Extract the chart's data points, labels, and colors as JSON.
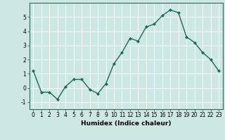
{
  "x": [
    0,
    1,
    2,
    3,
    4,
    5,
    6,
    7,
    8,
    9,
    10,
    11,
    12,
    13,
    14,
    15,
    16,
    17,
    18,
    19,
    20,
    21,
    22,
    23
  ],
  "y": [
    1.2,
    -0.3,
    -0.3,
    -0.8,
    0.1,
    0.6,
    0.6,
    -0.1,
    -0.4,
    0.3,
    1.7,
    2.5,
    3.5,
    3.3,
    4.3,
    4.5,
    5.1,
    5.5,
    5.3,
    3.6,
    3.2,
    2.5,
    2.0,
    1.2
  ],
  "line_color": "#1a6b5a",
  "marker": "D",
  "markersize": 2.0,
  "linewidth": 1.0,
  "bg_color": "#cde8e4",
  "grid_color": "#ffffff",
  "xlabel": "Humidex (Indice chaleur)",
  "ylim": [
    -1.5,
    6.0
  ],
  "xlim": [
    -0.5,
    23.5
  ],
  "yticks": [
    -1,
    0,
    1,
    2,
    3,
    4,
    5
  ],
  "xticks": [
    0,
    1,
    2,
    3,
    4,
    5,
    6,
    7,
    8,
    9,
    10,
    11,
    12,
    13,
    14,
    15,
    16,
    17,
    18,
    19,
    20,
    21,
    22,
    23
  ],
  "tick_fontsize": 5.5,
  "xlabel_fontsize": 6.5
}
